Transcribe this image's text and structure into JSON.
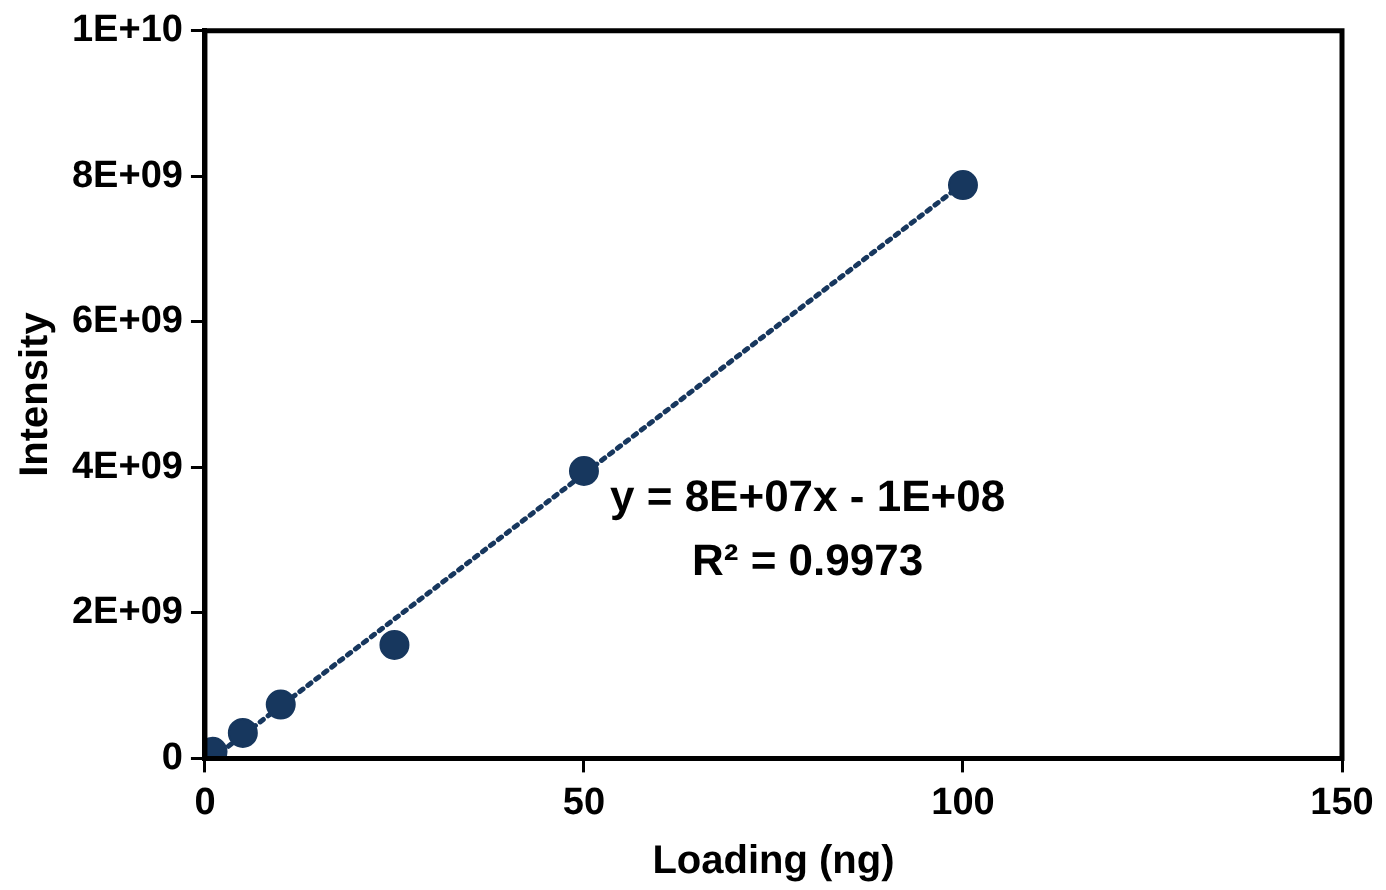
{
  "chart_data": {
    "type": "scatter",
    "xlabel": "Loading (ng)",
    "ylabel": "Intensity",
    "series": [
      {
        "color": "#17375e",
        "x": [
          1,
          5,
          10,
          25,
          50,
          100
        ],
        "values": [
          90000000,
          350000000,
          740000000,
          1560000000,
          3950000000,
          7880000000
        ]
      },
      {
        "type": "line",
        "color": "#17375e",
        "marker": "none",
        "line_style": "dotted",
        "x": [
          1,
          100
        ],
        "values": [
          0,
          7900000000
        ]
      }
    ],
    "marker": "circle",
    "xlim": [
      0,
      150
    ],
    "xticks": [
      0,
      50,
      100,
      150
    ],
    "ylim": [
      0,
      10000000000
    ],
    "yticks": [
      0,
      {
        "value": 2000000000,
        "label": "2E+09"
      },
      {
        "value": 4000000000,
        "label": "4E+09"
      },
      {
        "value": 6000000000,
        "label": "6E+09"
      },
      {
        "value": 8000000000,
        "label": "8E+09"
      },
      {
        "value": 10000000000,
        "label": "1E+10"
      }
    ],
    "grid": false,
    "legend": false,
    "annotations": [
      "y = 8E+07x - 1E+08",
      "R² = 0.9973"
    ]
  }
}
